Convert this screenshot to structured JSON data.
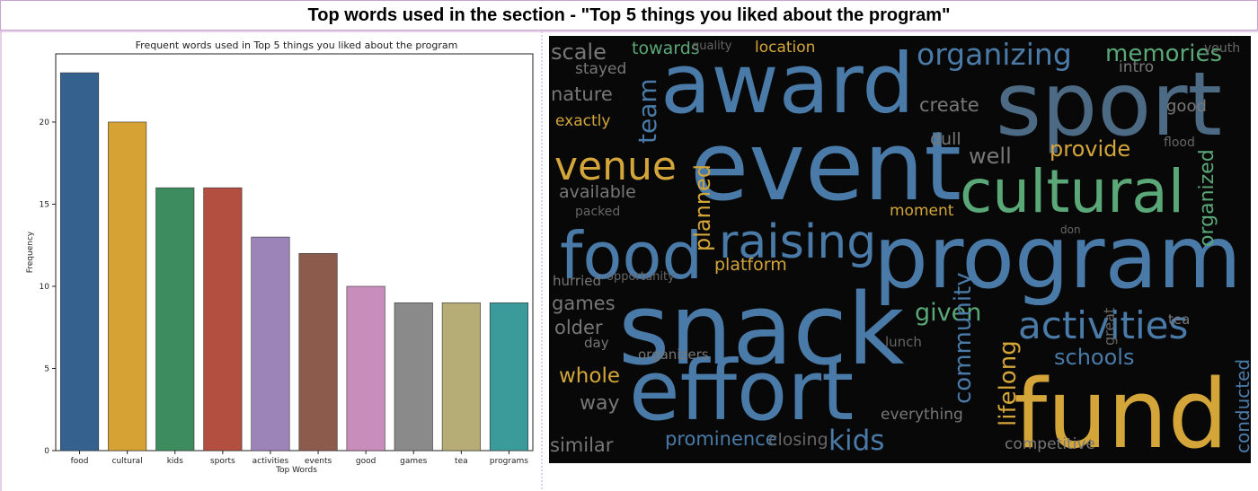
{
  "page_title": "Top words used in the section - \"Top 5 things you liked about the program\"",
  "chart_data": {
    "type": "bar",
    "title": "Frequent words used in Top 5 things you liked about the program",
    "x_label": "Top Words",
    "y_label": "Frequency",
    "categories": [
      "food",
      "cultural",
      "kids",
      "sports",
      "activities",
      "events",
      "good",
      "games",
      "tea",
      "programs"
    ],
    "values": [
      23,
      20,
      16,
      16,
      13,
      12,
      10,
      9,
      9,
      9
    ],
    "colors": [
      "#34618e",
      "#d6a233",
      "#3c8c5f",
      "#b34f40",
      "#9d84b8",
      "#8c5b4b",
      "#c88dbb",
      "#8a8a8a",
      "#b5ac76",
      "#3b9b9b"
    ],
    "ylim": [
      0,
      24.15
    ],
    "yticks": [
      0,
      5,
      10,
      15,
      20
    ]
  },
  "word_cloud": {
    "background": "#080808",
    "words": [
      {
        "text": "award",
        "color": "#4a7ba8"
      },
      {
        "text": "sport",
        "color": "#4d6a85"
      },
      {
        "text": "event",
        "color": "#4a7ba8"
      },
      {
        "text": "program",
        "color": "#4a7ba8"
      },
      {
        "text": "snack",
        "color": "#4a7ba8"
      },
      {
        "text": "effort",
        "color": "#4a7ba8"
      },
      {
        "text": "fund",
        "color": "#d4a63a"
      },
      {
        "text": "food",
        "color": "#4a7ba8"
      },
      {
        "text": "cultural",
        "color": "#5aa878"
      },
      {
        "text": "venue",
        "color": "#d4a63a"
      },
      {
        "text": "raising",
        "color": "#4a7ba8"
      },
      {
        "text": "activities",
        "color": "#4a7ba8"
      },
      {
        "text": "organizing",
        "color": "#4a7ba8"
      },
      {
        "text": "memories",
        "color": "#5aa878"
      },
      {
        "text": "scale",
        "color": "#777777"
      },
      {
        "text": "towards",
        "color": "#5aa878"
      },
      {
        "text": "quality",
        "color": "#666666"
      },
      {
        "text": "location",
        "color": "#d4a63a"
      },
      {
        "text": "stayed",
        "color": "#777777"
      },
      {
        "text": "intro",
        "color": "#777777"
      },
      {
        "text": "youth",
        "color": "#666666"
      },
      {
        "text": "nature",
        "color": "#777777"
      },
      {
        "text": "team",
        "color": "#4a7ba8"
      },
      {
        "text": "exactly",
        "color": "#d4a63a"
      },
      {
        "text": "create",
        "color": "#777777"
      },
      {
        "text": "good",
        "color": "#777777"
      },
      {
        "text": "dull",
        "color": "#777777"
      },
      {
        "text": "well",
        "color": "#777777"
      },
      {
        "text": "provide",
        "color": "#d4a63a"
      },
      {
        "text": "flood",
        "color": "#666666"
      },
      {
        "text": "available",
        "color": "#777777"
      },
      {
        "text": "packed",
        "color": "#666666"
      },
      {
        "text": "planned",
        "color": "#d4a63a"
      },
      {
        "text": "moment",
        "color": "#d4a63a"
      },
      {
        "text": "organized",
        "color": "#5aa878"
      },
      {
        "text": "platform",
        "color": "#d4a63a"
      },
      {
        "text": "hurried",
        "color": "#777777"
      },
      {
        "text": "opportunity",
        "color": "#666666"
      },
      {
        "text": "games",
        "color": "#777777"
      },
      {
        "text": "given",
        "color": "#5aa878"
      },
      {
        "text": "older",
        "color": "#777777"
      },
      {
        "text": "community",
        "color": "#4a7ba8"
      },
      {
        "text": "lifelong",
        "color": "#d4a63a"
      },
      {
        "text": "schools",
        "color": "#4a7ba8"
      },
      {
        "text": "whole",
        "color": "#d4a63a"
      },
      {
        "text": "organizers",
        "color": "#777777"
      },
      {
        "text": "lunch",
        "color": "#666666"
      },
      {
        "text": "way",
        "color": "#777777"
      },
      {
        "text": "similar",
        "color": "#777777"
      },
      {
        "text": "prominence",
        "color": "#4a7ba8"
      },
      {
        "text": "kids",
        "color": "#4a7ba8"
      },
      {
        "text": "competitive",
        "color": "#777777"
      },
      {
        "text": "conducted",
        "color": "#4a7ba8"
      },
      {
        "text": "everything",
        "color": "#777777"
      },
      {
        "text": "tea",
        "color": "#777777"
      },
      {
        "text": "day",
        "color": "#777777"
      },
      {
        "text": "great",
        "color": "#666666"
      },
      {
        "text": "closing",
        "color": "#666666"
      },
      {
        "text": "don",
        "color": "#666666"
      }
    ]
  }
}
